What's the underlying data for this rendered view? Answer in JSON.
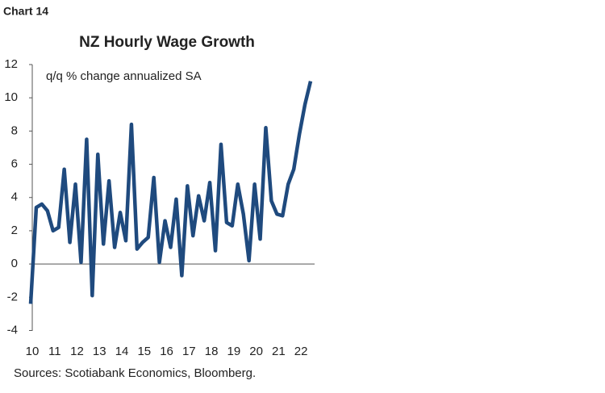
{
  "chart_data": {
    "type": "line",
    "label": "Chart 14",
    "title": "NZ Hourly Wage Growth",
    "annotation": "q/q % change annualized SA",
    "source": "Sources: Scotiabank Economics, Bloomberg.",
    "categories": [
      "10",
      null,
      null,
      null,
      "11",
      null,
      null,
      null,
      "12",
      null,
      null,
      null,
      "13",
      null,
      null,
      null,
      "14",
      null,
      null,
      null,
      "15",
      null,
      null,
      null,
      "16",
      null,
      null,
      null,
      "17",
      null,
      null,
      null,
      "18",
      null,
      null,
      null,
      "19",
      null,
      null,
      null,
      "20",
      null,
      null,
      null,
      "21",
      null,
      null,
      null,
      "22",
      null,
      null
    ],
    "series": [
      {
        "color": "#1f4a7e",
        "values": [
          -2.4,
          3.4,
          3.6,
          3.2,
          2.0,
          2.2,
          5.7,
          1.3,
          4.8,
          0.1,
          7.5,
          -1.9,
          6.6,
          1.2,
          5.0,
          1.0,
          3.1,
          1.4,
          8.4,
          0.9,
          1.3,
          1.6,
          5.2,
          0.1,
          2.6,
          1.0,
          3.9,
          -0.7,
          4.7,
          1.7,
          4.1,
          2.6,
          4.9,
          0.8,
          7.2,
          2.5,
          2.3,
          4.8,
          3.0,
          0.2,
          4.8,
          1.5,
          8.2,
          3.8,
          3.0,
          2.9,
          4.8,
          5.7,
          7.8,
          9.6,
          11.0
        ]
      }
    ],
    "ylim": [
      -4,
      12
    ],
    "yticks": [
      -4,
      -2,
      0,
      2,
      4,
      6,
      8,
      10,
      12
    ],
    "grid": false
  }
}
